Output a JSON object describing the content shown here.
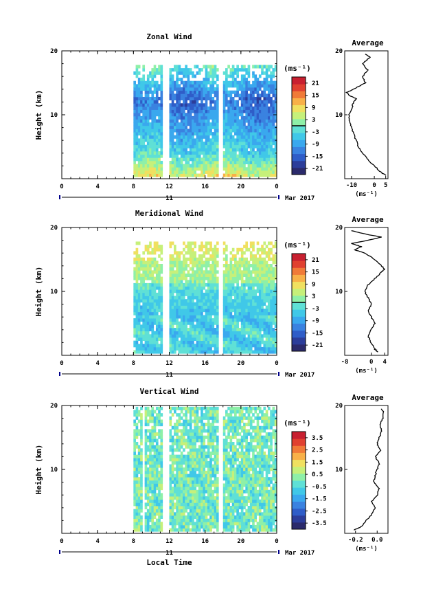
{
  "colormap": [
    "#2b2a6b",
    "#2c3d9a",
    "#2f5dc8",
    "#3a82e0",
    "#3aa8ee",
    "#40c8e8",
    "#5fe0d6",
    "#8ef0a8",
    "#c6f07a",
    "#f0e060",
    "#f8b048",
    "#f07a38",
    "#e04030",
    "#c82030"
  ],
  "shared": {
    "x_ticks": [
      "0",
      "4",
      "8",
      "12",
      "16",
      "20",
      "0"
    ],
    "y_ticks": [
      "10",
      "20"
    ],
    "y_label": "Height (km)",
    "date_label": "11",
    "month_label": "Mar 2017",
    "unit_label": "(ms⁻¹)",
    "average_title": "Average",
    "x_label": "Local Time"
  },
  "chart_data": [
    {
      "type": "heatmap",
      "title": "Zonal Wind",
      "xlabel": "",
      "ylabel": "Height (km)",
      "xlim": [
        0,
        24
      ],
      "ylim": [
        0,
        20
      ],
      "data_hours": [
        8,
        24
      ],
      "data_heights": [
        0.3,
        17.5
      ],
      "gaps_hours": [
        [
          11.1,
          11.8
        ],
        [
          17.5,
          17.8
        ]
      ],
      "colorbar": {
        "unit": "(ms⁻¹)",
        "ticks": [
          "21",
          "15",
          "9",
          "3",
          "-3",
          "-9",
          "-15",
          "-21"
        ],
        "range": [
          -24,
          24
        ],
        "zero_line": true
      },
      "profile": {
        "title": "Average",
        "xlabel": "(ms⁻¹)",
        "xticks": [
          "-10",
          "0",
          "5"
        ],
        "xlim": [
          -13,
          6
        ],
        "heights": [
          0.5,
          1,
          2,
          3,
          4,
          5,
          6,
          7,
          8,
          9,
          10,
          11,
          12,
          12.5,
          13,
          13.5,
          14,
          15,
          16,
          17,
          18,
          19,
          19.5
        ],
        "values": [
          5,
          3,
          0,
          -3,
          -5,
          -7,
          -8,
          -9,
          -10,
          -11,
          -11,
          -10,
          -9,
          -8,
          -11,
          -12,
          -9,
          -4,
          -5,
          -3,
          -5,
          -2,
          -4
        ]
      }
    },
    {
      "type": "heatmap",
      "title": "Meridional Wind",
      "xlabel": "",
      "ylabel": "Height (km)",
      "xlim": [
        0,
        24
      ],
      "ylim": [
        0,
        20
      ],
      "data_hours": [
        8,
        24
      ],
      "data_heights": [
        0.3,
        17.5
      ],
      "gaps_hours": [
        [
          11.1,
          11.8
        ],
        [
          17.5,
          17.8
        ]
      ],
      "colorbar": {
        "unit": "(ms⁻¹)",
        "ticks": [
          "21",
          "15",
          "9",
          "3",
          "-3",
          "-9",
          "-15",
          "-21"
        ],
        "range": [
          -24,
          24
        ],
        "zero_line": true
      },
      "profile": {
        "title": "Average",
        "xlabel": "(ms⁻¹)",
        "xticks": [
          "-8",
          "0",
          "4"
        ],
        "xlim": [
          -8,
          5
        ],
        "heights": [
          0.5,
          1,
          2,
          3,
          4,
          5,
          6,
          7,
          8,
          9,
          10,
          11,
          12,
          13,
          13.5,
          14,
          15,
          16,
          16.5,
          17,
          17.5,
          18,
          18.5,
          19,
          19.5
        ],
        "values": [
          2,
          1,
          0,
          -1,
          0,
          1,
          0,
          -1,
          0,
          -1,
          -2,
          -1,
          1,
          3,
          4,
          3,
          1,
          -2,
          -5,
          -3,
          -6,
          -1,
          3,
          -2,
          -6
        ]
      }
    },
    {
      "type": "heatmap",
      "title": "Vertical Wind",
      "xlabel": "Local Time",
      "ylabel": "Height (km)",
      "xlim": [
        0,
        24
      ],
      "ylim": [
        0,
        20
      ],
      "data_hours": [
        8,
        24
      ],
      "data_heights": [
        0.3,
        19.8
      ],
      "gaps_hours": [
        [
          8.8,
          9.1
        ],
        [
          11.1,
          11.8
        ],
        [
          17.5,
          17.8
        ]
      ],
      "colorbar": {
        "unit": "(ms⁻¹)",
        "ticks": [
          "3.5",
          "2.5",
          "1.5",
          "0.5",
          "-0.5",
          "-1.5",
          "-2.5",
          "-3.5"
        ],
        "range": [
          -4,
          4
        ],
        "zero_line": false
      },
      "profile": {
        "title": "Average",
        "xlabel": "(ms⁻¹)",
        "xticks": [
          "-0.2",
          "0.0"
        ],
        "xlim": [
          -0.3,
          0.1
        ],
        "heights": [
          0.5,
          1,
          2,
          3,
          4,
          5,
          6,
          7,
          8,
          9,
          10,
          11,
          12,
          13,
          14,
          15,
          16,
          17,
          18,
          19,
          19.5
        ],
        "values": [
          -0.22,
          -0.15,
          -0.1,
          -0.05,
          -0.02,
          -0.05,
          0.0,
          0.02,
          -0.03,
          -0.02,
          0.0,
          0.02,
          -0.02,
          0.03,
          0.0,
          0.02,
          0.04,
          0.03,
          0.05,
          0.06,
          0.04
        ]
      }
    }
  ]
}
